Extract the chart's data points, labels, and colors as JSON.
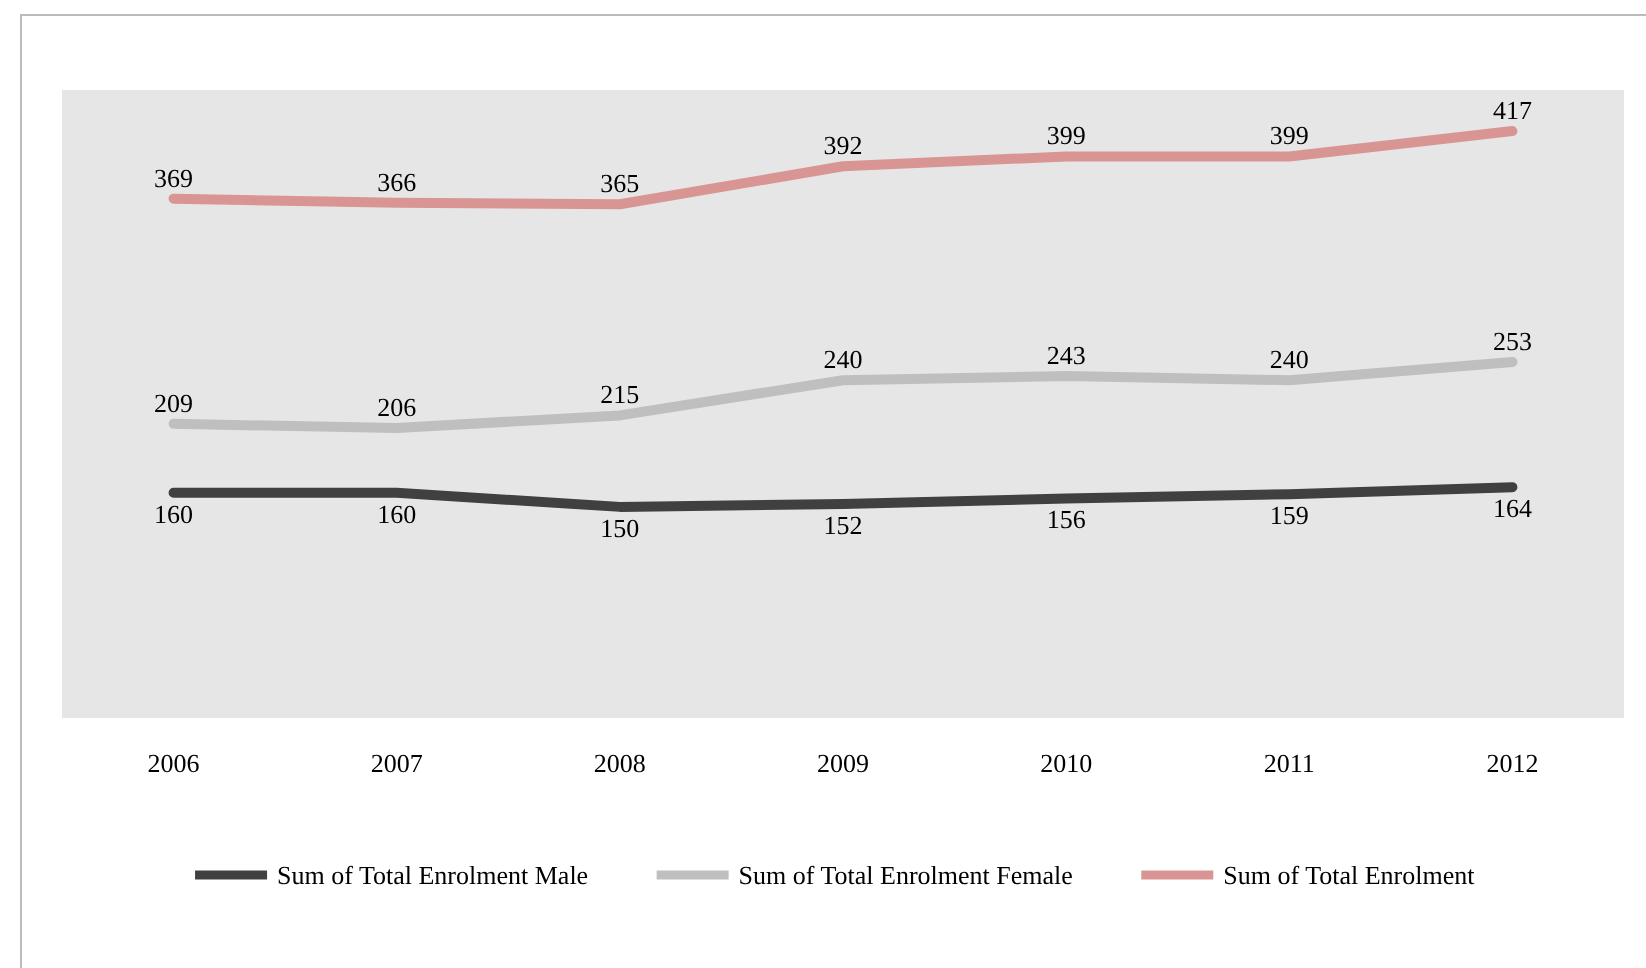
{
  "chart_data": {
    "type": "line",
    "categories": [
      "2006",
      "2007",
      "2008",
      "2009",
      "2010",
      "2011",
      "2012"
    ],
    "series": [
      {
        "name": "Sum of Total Enrolment Male",
        "color": "#404040",
        "values": [
          160,
          160,
          150,
          152,
          156,
          159,
          164
        ]
      },
      {
        "name": "Sum of Total Enrolment Female",
        "color": "#bfbfbf",
        "values": [
          209,
          206,
          215,
          240,
          243,
          240,
          253
        ]
      },
      {
        "name": "Sum of Total Enrolment",
        "color": "#d99594",
        "values": [
          369,
          366,
          365,
          392,
          399,
          399,
          417
        ]
      }
    ],
    "data_labels": true,
    "grid": false,
    "legend": "bottom",
    "marker": "none",
    "line_style": "solid"
  }
}
